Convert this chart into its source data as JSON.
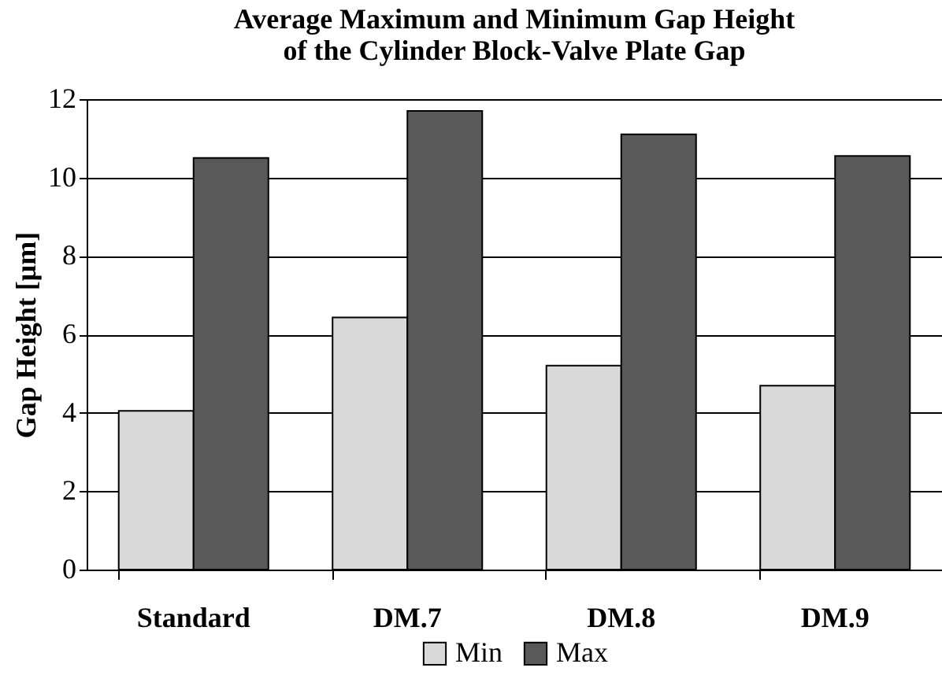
{
  "chart_data": {
    "type": "bar",
    "title": "Average Maximum and Minimum Gap Height\nof the Cylinder Block-Valve Plate Gap",
    "ylabel": "Gap Height [μm]",
    "categories": [
      "Standard",
      "DM.7",
      "DM.8",
      "DM.9"
    ],
    "series": [
      {
        "name": "Min",
        "color": "#d9d9d9",
        "values": [
          4.05,
          6.43,
          5.2,
          4.69
        ]
      },
      {
        "name": "Max",
        "color": "#595959",
        "values": [
          10.5,
          11.7,
          11.1,
          10.55
        ]
      }
    ],
    "ylim": [
      0,
      12
    ],
    "yticks": [
      0,
      2,
      4,
      6,
      8,
      10,
      12
    ],
    "grid": "y",
    "legend": "bottom"
  }
}
